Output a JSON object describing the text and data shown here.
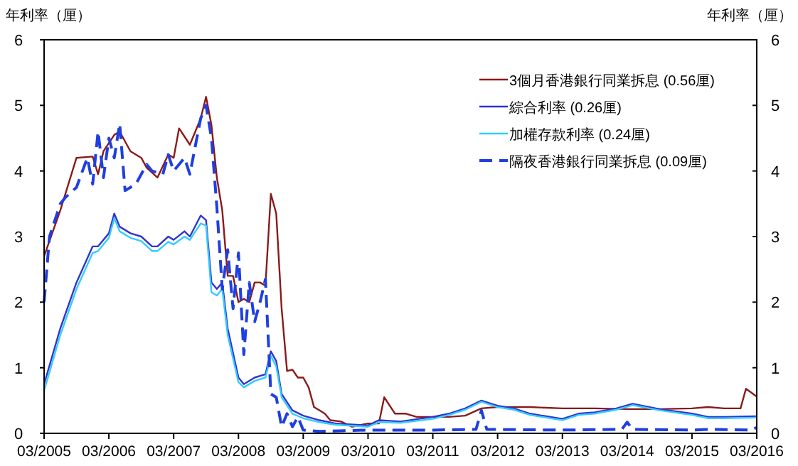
{
  "chart_data": {
    "type": "line",
    "ylabel": "年利率（厘）",
    "y2label": "年利率（厘）",
    "xlim": [
      "2005-03",
      "2016-03"
    ],
    "xticks": [
      {
        "value": "2005-03",
        "label": "03/2005"
      },
      {
        "value": "2006-03",
        "label": "03/2006"
      },
      {
        "value": "2007-03",
        "label": "03/2007"
      },
      {
        "value": "2008-03",
        "label": "03/2008"
      },
      {
        "value": "2009-03",
        "label": "03/2009"
      },
      {
        "value": "2010-03",
        "label": "03/2010"
      },
      {
        "value": "2011-03",
        "label": "03/2011"
      },
      {
        "value": "2012-03",
        "label": "03/2012"
      },
      {
        "value": "2013-03",
        "label": "03/2013"
      },
      {
        "value": "2014-03",
        "label": "03/2014"
      },
      {
        "value": "2015-03",
        "label": "03/2015"
      },
      {
        "value": "2016-03",
        "label": "03/2016"
      }
    ],
    "ylim": [
      0,
      6
    ],
    "yticks": [
      0,
      1,
      2,
      3,
      4,
      5,
      6
    ],
    "y2lim": [
      0,
      6
    ],
    "y2ticks": [
      0,
      1,
      2,
      3,
      4,
      5,
      6
    ],
    "grid": false,
    "legend": "top right",
    "series": [
      {
        "name": "3個月香港銀行同業拆息 (0.56厘)",
        "color": "#8b1a1a",
        "line_style": "solid",
        "x": [
          "2005-03",
          "2005-06",
          "2005-09",
          "2005-12",
          "2006-01",
          "2006-02",
          "2006-04",
          "2006-05",
          "2006-07",
          "2006-09",
          "2006-10",
          "2006-12",
          "2007-02",
          "2007-03",
          "2007-04",
          "2007-06",
          "2007-08",
          "2007-09",
          "2007-10",
          "2007-11",
          "2007-12",
          "2008-01",
          "2008-02",
          "2008-03",
          "2008-04",
          "2008-05",
          "2008-06",
          "2008-07",
          "2008-08",
          "2008-09",
          "2008-10",
          "2008-11",
          "2008-12",
          "2009-01",
          "2009-02",
          "2009-03",
          "2009-04",
          "2009-05",
          "2009-07",
          "2009-08",
          "2009-10",
          "2009-12",
          "2010-03",
          "2010-05",
          "2010-06",
          "2010-08",
          "2010-10",
          "2010-12",
          "2011-03",
          "2011-06",
          "2011-09",
          "2011-12",
          "2012-03",
          "2012-09",
          "2013-03",
          "2013-09",
          "2014-03",
          "2014-09",
          "2015-03",
          "2015-06",
          "2015-09",
          "2015-12",
          "2016-01",
          "2016-03"
        ],
        "values": [
          2.7,
          3.4,
          4.2,
          4.22,
          3.95,
          4.3,
          4.55,
          4.6,
          4.3,
          4.2,
          4.05,
          3.9,
          4.25,
          4.2,
          4.65,
          4.4,
          4.8,
          5.13,
          4.7,
          3.9,
          3.4,
          2.4,
          2.4,
          2.0,
          2.05,
          2.0,
          2.3,
          2.3,
          2.25,
          3.65,
          3.35,
          1.9,
          0.95,
          0.97,
          0.85,
          0.85,
          0.7,
          0.4,
          0.3,
          0.2,
          0.18,
          0.1,
          0.15,
          0.15,
          0.55,
          0.3,
          0.3,
          0.25,
          0.25,
          0.25,
          0.27,
          0.38,
          0.4,
          0.4,
          0.38,
          0.38,
          0.37,
          0.37,
          0.38,
          0.4,
          0.38,
          0.38,
          0.68,
          0.56
        ]
      },
      {
        "name": "綜合利率 (0.26厘)",
        "color": "#3333cc",
        "line_style": "solid",
        "x": [
          "2005-03",
          "2005-06",
          "2005-09",
          "2005-12",
          "2006-01",
          "2006-03",
          "2006-04",
          "2006-05",
          "2006-07",
          "2006-09",
          "2006-11",
          "2006-12",
          "2007-02",
          "2007-03",
          "2007-05",
          "2007-06",
          "2007-08",
          "2007-09",
          "2007-10",
          "2007-11",
          "2007-12",
          "2008-01",
          "2008-03",
          "2008-04",
          "2008-06",
          "2008-08",
          "2008-09",
          "2008-10",
          "2008-11",
          "2009-01",
          "2009-03",
          "2009-06",
          "2009-09",
          "2010-03",
          "2010-05",
          "2010-09",
          "2011-03",
          "2011-06",
          "2011-09",
          "2011-12",
          "2012-03",
          "2012-06",
          "2012-09",
          "2013-03",
          "2013-06",
          "2013-09",
          "2014-01",
          "2014-04",
          "2014-09",
          "2015-03",
          "2015-06",
          "2015-09",
          "2016-03"
        ],
        "values": [
          0.75,
          1.6,
          2.3,
          2.85,
          2.85,
          3.05,
          3.35,
          3.15,
          3.05,
          3.0,
          2.85,
          2.85,
          3.0,
          2.95,
          3.08,
          3.0,
          3.32,
          3.25,
          2.3,
          2.2,
          2.3,
          1.6,
          0.85,
          0.75,
          0.85,
          0.9,
          1.25,
          1.1,
          0.6,
          0.35,
          0.27,
          0.2,
          0.15,
          0.12,
          0.2,
          0.18,
          0.25,
          0.3,
          0.38,
          0.5,
          0.42,
          0.38,
          0.3,
          0.22,
          0.3,
          0.32,
          0.38,
          0.45,
          0.37,
          0.3,
          0.25,
          0.25,
          0.26
        ]
      },
      {
        "name": "加權存款利率 (0.24厘)",
        "color": "#33ccff",
        "line_style": "solid",
        "x": [
          "2005-03",
          "2005-06",
          "2005-09",
          "2005-12",
          "2006-01",
          "2006-03",
          "2006-04",
          "2006-05",
          "2006-07",
          "2006-09",
          "2006-11",
          "2006-12",
          "2007-02",
          "2007-03",
          "2007-05",
          "2007-06",
          "2007-08",
          "2007-09",
          "2007-10",
          "2007-11",
          "2007-12",
          "2008-01",
          "2008-03",
          "2008-04",
          "2008-06",
          "2008-08",
          "2008-09",
          "2008-10",
          "2008-11",
          "2009-01",
          "2009-03",
          "2009-06",
          "2009-09",
          "2010-03",
          "2010-05",
          "2010-09",
          "2011-03",
          "2011-06",
          "2011-09",
          "2011-12",
          "2012-03",
          "2012-06",
          "2012-09",
          "2013-03",
          "2013-06",
          "2013-09",
          "2014-01",
          "2014-04",
          "2014-09",
          "2015-03",
          "2015-06",
          "2015-09",
          "2016-03"
        ],
        "values": [
          0.65,
          1.5,
          2.2,
          2.75,
          2.78,
          2.98,
          3.28,
          3.08,
          2.98,
          2.93,
          2.78,
          2.78,
          2.92,
          2.88,
          3.0,
          2.95,
          3.2,
          3.17,
          2.15,
          2.1,
          2.2,
          1.5,
          0.78,
          0.7,
          0.8,
          0.85,
          1.18,
          1.02,
          0.55,
          0.3,
          0.23,
          0.17,
          0.13,
          0.1,
          0.17,
          0.16,
          0.22,
          0.28,
          0.36,
          0.48,
          0.4,
          0.36,
          0.28,
          0.2,
          0.28,
          0.3,
          0.36,
          0.43,
          0.35,
          0.28,
          0.23,
          0.23,
          0.24
        ]
      },
      {
        "name": "隔夜香港銀行同業拆息 (0.09厘)",
        "color": "#1f3fe0",
        "line_style": "dashed",
        "x": [
          "2005-03",
          "2005-04",
          "2005-06",
          "2005-07",
          "2005-09",
          "2005-11",
          "2005-12",
          "2006-01",
          "2006-02",
          "2006-03",
          "2006-04",
          "2006-05",
          "2006-06",
          "2006-08",
          "2006-10",
          "2006-11",
          "2007-01",
          "2007-02",
          "2007-03",
          "2007-05",
          "2007-06",
          "2007-08",
          "2007-09",
          "2007-10",
          "2007-11",
          "2007-12",
          "2008-01",
          "2008-02",
          "2008-03",
          "2008-04",
          "2008-05",
          "2008-06",
          "2008-07",
          "2008-08",
          "2008-09",
          "2008-10",
          "2008-11",
          "2008-12",
          "2009-01",
          "2009-02",
          "2009-03",
          "2009-06",
          "2010-03",
          "2011-03",
          "2011-11",
          "2011-12",
          "2012-01",
          "2013-03",
          "2014-02",
          "2014-03",
          "2014-04",
          "2015-03",
          "2015-06",
          "2016-02",
          "2016-03"
        ],
        "values": [
          2.0,
          3.0,
          3.5,
          3.6,
          3.75,
          4.2,
          3.8,
          4.6,
          3.9,
          4.5,
          4.2,
          4.72,
          3.7,
          3.8,
          4.1,
          4.0,
          3.95,
          4.25,
          4.0,
          4.2,
          3.95,
          4.8,
          5.0,
          4.5,
          3.45,
          2.2,
          2.8,
          1.9,
          2.75,
          1.2,
          2.3,
          1.7,
          2.0,
          2.35,
          0.6,
          0.55,
          0.1,
          0.3,
          0.1,
          0.25,
          0.05,
          0.03,
          0.05,
          0.05,
          0.06,
          0.35,
          0.06,
          0.05,
          0.06,
          0.17,
          0.06,
          0.05,
          0.06,
          0.05,
          0.09
        ]
      }
    ]
  }
}
